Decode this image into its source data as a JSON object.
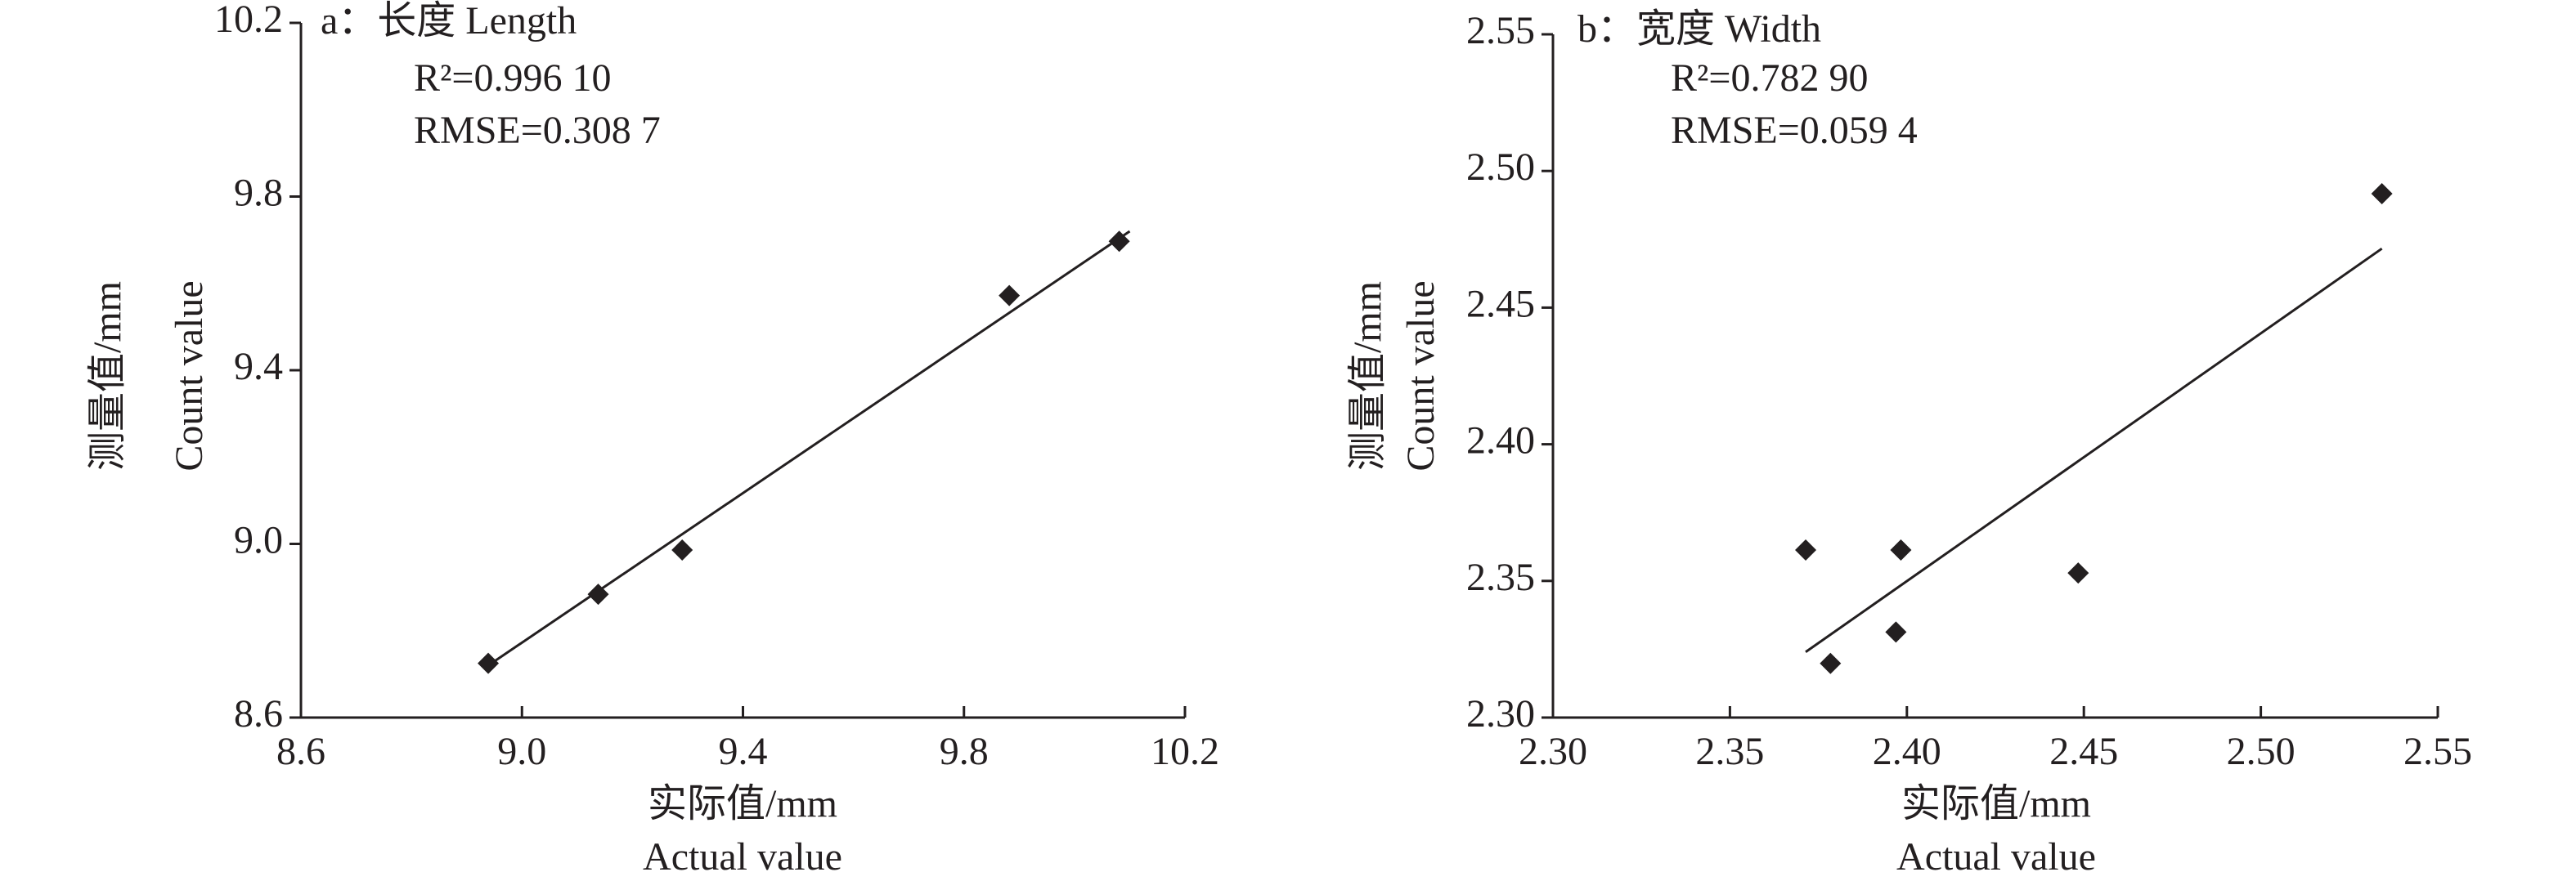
{
  "chart_data": [
    {
      "type": "scatter",
      "title": "a：长度 Length",
      "annotations": [
        "R²=0.996 10",
        "RMSE=0.308 7"
      ],
      "x_label": [
        "实际值/mm",
        "Actual value"
      ],
      "y_label": [
        "测量值/mm",
        "Count value"
      ],
      "x": [
        8.939,
        9.138,
        9.29,
        9.882,
        10.081
      ],
      "values": [
        8.725,
        8.884,
        8.986,
        9.572,
        9.697
      ],
      "fit": {
        "x": [
          8.939,
          10.1
        ],
        "values": [
          8.72,
          9.72
        ]
      },
      "color": "#231f20",
      "xlim": [
        8.6,
        10.2
      ],
      "xticks": [
        8.6,
        {
          "value": 9,
          "label": "9.0"
        },
        9.4,
        9.8,
        10.2
      ],
      "ylim": [
        8.6,
        10.2
      ],
      "yticks": [
        8.6,
        {
          "value": 9,
          "label": "9.0"
        },
        9.4,
        9.8,
        10.2
      ]
    },
    {
      "type": "scatter",
      "title": "b：宽度 Width",
      "annotations": [
        "R²=0.782 90",
        "RMSE=0.059 4"
      ],
      "x_label": [
        "实际值/mm",
        "Actual value"
      ],
      "y_label": [
        "测量值/mm",
        "Count value"
      ],
      "x": [
        2.3714,
        2.3784,
        2.3969,
        2.3983,
        2.4484,
        2.5342
      ],
      "values": [
        2.3613,
        2.3198,
        2.3313,
        2.3613,
        2.3529,
        2.4917
      ],
      "fit": {
        "x": [
          2.3714,
          2.5342
        ],
        "values": [
          2.324,
          2.4716
        ]
      },
      "color": "#231f20",
      "xlim": [
        2.3,
        2.55
      ],
      "xticks": [
        {
          "value": 2.3,
          "label": "2.30"
        },
        2.35,
        {
          "value": 2.4,
          "label": "2.40"
        },
        2.45,
        {
          "value": 2.5,
          "label": "2.50"
        },
        2.55
      ],
      "ylim": [
        2.3,
        2.55
      ],
      "yticks": [
        {
          "value": 2.3,
          "label": "2.30"
        },
        2.35,
        {
          "value": 2.4,
          "label": "2.40"
        },
        2.45,
        {
          "value": 2.5,
          "label": "2.50"
        },
        2.55
      ]
    }
  ]
}
